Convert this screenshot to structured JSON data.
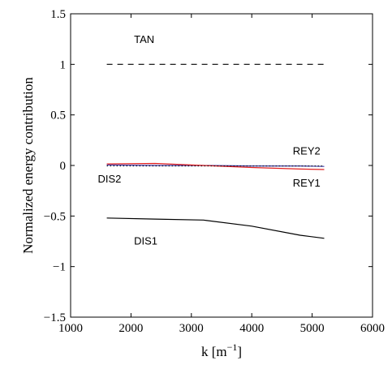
{
  "chart_data": {
    "type": "line",
    "title": "",
    "xlabel": "k",
    "xlabel_unit": "[m",
    "xlabel_unit_exp": "−1",
    "xlabel_unit_close": "]",
    "ylabel": "Normalized energy contribution",
    "xlim": [
      1000,
      6000
    ],
    "ylim": [
      -1.5,
      1.5
    ],
    "x_ticks": [
      1000,
      2000,
      3000,
      4000,
      5000,
      6000
    ],
    "x_tick_labels": [
      "1000",
      "2000",
      "3000",
      "4000",
      "5000",
      "6000"
    ],
    "y_ticks": [
      1.5,
      1,
      0.5,
      0,
      -0.5,
      -1,
      -1.5
    ],
    "y_tick_labels": [
      "1.5",
      "1",
      "0.5",
      "0",
      "−0.5",
      "−1",
      "−1.5"
    ],
    "grid": false,
    "legend": "none",
    "series": [
      {
        "name": "TAN",
        "color": "#000000",
        "style": "dashed",
        "x": [
          1600,
          2400,
          3200,
          4000,
          4800,
          5200
        ],
        "y": [
          1,
          1,
          1,
          1,
          1,
          1
        ]
      },
      {
        "name": "REY2",
        "color": "#3a3aa8",
        "style": "solid",
        "x": [
          1600,
          2400,
          3200,
          4000,
          4800,
          5200
        ],
        "y": [
          0.005,
          0.0,
          0.0,
          -0.005,
          -0.005,
          -0.01
        ]
      },
      {
        "name": "REY1",
        "color": "#e02020",
        "style": "solid",
        "x": [
          1600,
          2400,
          3200,
          4000,
          4800,
          5200
        ],
        "y": [
          0.015,
          0.02,
          0.0,
          -0.02,
          -0.035,
          -0.04
        ]
      },
      {
        "name": "DIS2",
        "color": "#000000",
        "style": "dotted",
        "x": [
          1600,
          2400,
          3200,
          4000,
          4800,
          5200
        ],
        "y": [
          -0.005,
          -0.005,
          -0.005,
          -0.005,
          -0.005,
          -0.005
        ]
      },
      {
        "name": "DIS1",
        "color": "#000000",
        "style": "solid",
        "x": [
          1600,
          2400,
          3200,
          4000,
          4800,
          5200
        ],
        "y": [
          -0.52,
          -0.53,
          -0.54,
          -0.6,
          -0.69,
          -0.72
        ]
      }
    ],
    "annotations": [
      {
        "text": "TAN",
        "x": 2050,
        "y": 1.25
      },
      {
        "text": "REY2",
        "x": 4680,
        "y": 0.15
      },
      {
        "text": "REY1",
        "x": 4680,
        "y": -0.17
      },
      {
        "text": "DIS2",
        "x": 1450,
        "y": -0.13
      },
      {
        "text": "DIS1",
        "x": 2050,
        "y": -0.74
      }
    ]
  }
}
